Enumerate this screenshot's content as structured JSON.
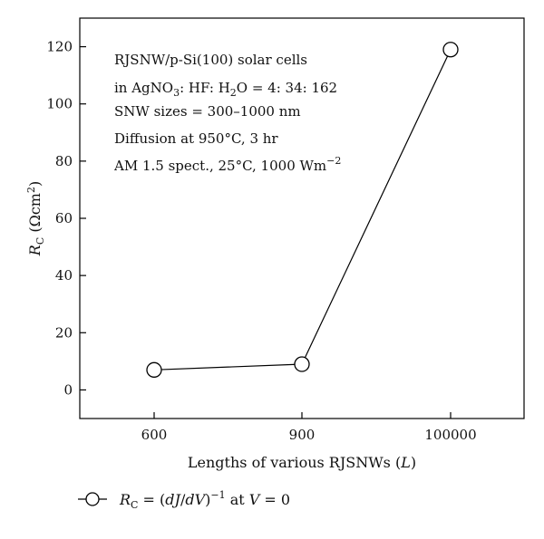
{
  "chart_data": {
    "type": "line",
    "categories": [
      "600",
      "900",
      "100000"
    ],
    "series": [
      {
        "name": "R_C = (dJ/dV)^-1 at V = 0",
        "values": [
          7,
          9,
          119
        ],
        "marker": "open-circle",
        "color": "#000000"
      }
    ],
    "xlabel": {
      "prefix": "Lengths of various RJSNWs (",
      "var": "L",
      "suffix": ")"
    },
    "ylabel": {
      "var": "R",
      "sub": "C",
      "unit_open": " (Ωcm",
      "unit_sup": "2",
      "unit_close": ")"
    },
    "ylim": [
      -10,
      130
    ],
    "yticks": [
      0,
      20,
      40,
      60,
      80,
      100,
      120
    ],
    "grid": false,
    "legend_position": "bottom-left",
    "legend": {
      "var": "R",
      "sub": "C",
      "eq": " = (",
      "dJ": "dJ",
      "slash": "/",
      "dV": "dV",
      "close": ")",
      "sup": "−1",
      "at": " at ",
      "V": "V",
      "zero": " = 0"
    },
    "annotations": {
      "line1": "RJSNW/p-Si(100) solar cells",
      "line2": {
        "a": "in AgNO",
        "a_sub": "3",
        "b": ": HF: H",
        "b_sub": "2",
        "c": "O = 4: 34: 162"
      },
      "line3": "SNW sizes = 300–1000 nm",
      "line4": "Diffusion at 950°C, 3 hr",
      "line5": {
        "a": "AM 1.5 spect., 25°C, 1000 Wm",
        "sup": "−2"
      }
    }
  }
}
